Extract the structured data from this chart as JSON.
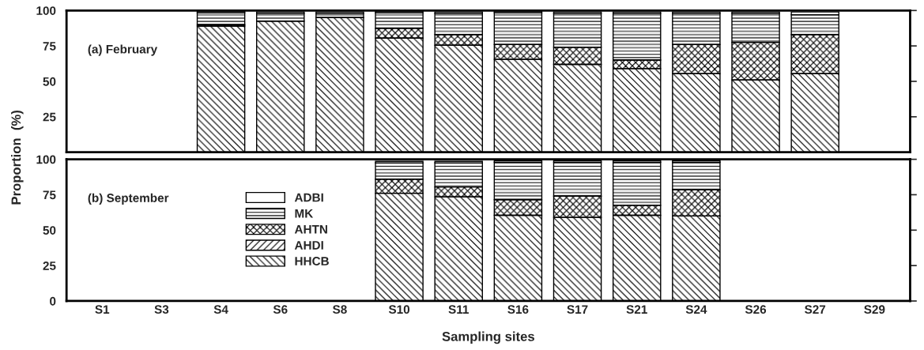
{
  "chart_data": [
    {
      "type": "bar",
      "stacked": true,
      "ylabel": "Proportion  (%)",
      "annotations": [
        "(a) February"
      ],
      "categories": [
        null,
        null,
        null,
        null,
        null,
        null,
        null,
        null,
        null,
        null,
        null,
        null,
        null,
        null
      ],
      "ylim": [
        0,
        100
      ],
      "yticks": [
        25,
        50,
        75,
        100
      ],
      "tick_labels": "y",
      "series": [
        {
          "color": "#000000",
          "values": [
            null,
            null,
            89,
            92.5,
            95,
            80.5,
            75.5,
            65.5,
            62,
            59,
            55.5,
            51,
            55.5,
            null
          ]
        },
        {
          "color": "#000000",
          "values": [
            null,
            null,
            1,
            null,
            null,
            null,
            null,
            null,
            null,
            null,
            null,
            null,
            null,
            null
          ]
        },
        {
          "color": "#000000",
          "values": [
            null,
            null,
            null,
            null,
            null,
            7,
            7.5,
            10.5,
            12,
            6,
            20.5,
            26.5,
            27.5,
            null
          ]
        },
        {
          "color": "#000000",
          "values": [
            null,
            null,
            8.5,
            5.5,
            3,
            11,
            15,
            22.5,
            24,
            33,
            22,
            20.5,
            14,
            null
          ]
        },
        {
          "color": "#ffffff",
          "values": [
            null,
            null,
            1,
            1,
            1,
            1,
            1,
            1,
            1,
            1,
            1,
            1,
            2,
            null
          ]
        }
      ]
    },
    {
      "type": "bar",
      "stacked": true,
      "xlabel": "Sampling sites",
      "annotations": [
        "(b) September"
      ],
      "legend": "left",
      "categories": [
        "S1",
        "S3",
        "S4",
        "S6",
        "S8",
        "S10",
        "S11",
        "S16",
        "S17",
        "S21",
        "S24",
        "S26",
        "S27",
        "S29"
      ],
      "ylim": [
        0,
        100
      ],
      "yticks": [
        0,
        25,
        50,
        75,
        100
      ],
      "series": [
        {
          "name": "HHCB",
          "color": "#000000",
          "values": [
            null,
            null,
            null,
            null,
            null,
            76,
            73.5,
            60.5,
            59,
            60.5,
            60,
            null,
            null,
            null
          ]
        },
        {
          "name": "AHDI",
          "color": "#000000",
          "values": [
            null,
            null,
            null,
            null,
            null,
            null,
            null,
            null,
            null,
            null,
            null,
            null,
            null,
            null
          ]
        },
        {
          "name": "AHTN",
          "color": "#000000",
          "values": [
            null,
            null,
            null,
            null,
            null,
            10,
            7,
            11,
            15,
            7,
            18.5,
            null,
            null,
            null
          ]
        },
        {
          "name": "MK",
          "color": "#000000",
          "values": [
            null,
            null,
            null,
            null,
            null,
            11.5,
            17,
            26.5,
            24,
            30.5,
            19.5,
            null,
            null,
            null
          ]
        },
        {
          "name": "ADBI",
          "color": "#ffffff",
          "values": [
            null,
            null,
            null,
            null,
            null,
            1,
            1,
            1,
            1,
            1,
            1,
            null,
            null,
            null
          ]
        }
      ]
    }
  ]
}
